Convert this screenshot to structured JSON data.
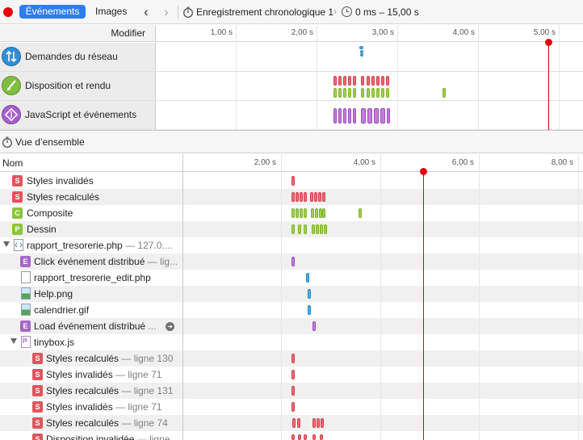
{
  "toolbar": {
    "tabs": [
      {
        "label": "Événements",
        "active": true
      },
      {
        "label": "Images",
        "active": false
      }
    ],
    "recording_name": "Enregistrement chronologique 1",
    "time_range": "0 ms – 15,00 s"
  },
  "overview": {
    "header_label": "Modifier",
    "ticks": [
      "1,00 s",
      "2,00 s",
      "3,00 s",
      "4,00 s",
      "5,00 s"
    ],
    "rows": [
      {
        "label": "Demandes du réseau",
        "icon": "network-icon",
        "color": "#2f8ed6"
      },
      {
        "label": "Disposition et rendu",
        "icon": "paintbrush-icon",
        "color": "#7fbf3f"
      },
      {
        "label": "JavaScript et événements",
        "icon": "javascript-icon",
        "color": "#a85fd0"
      }
    ]
  },
  "vue_ensemble": {
    "label": "Vue d’ensemble"
  },
  "list": {
    "header_label": "Nom",
    "ticks": [
      "2,00 s",
      "4,00 s",
      "6,00 s",
      "8,00 s"
    ],
    "rows": [
      {
        "badge": "S",
        "name": "Styles invalidés",
        "sub": ""
      },
      {
        "badge": "S",
        "name": "Styles recalculés",
        "sub": ""
      },
      {
        "badge": "C",
        "name": "Composite",
        "sub": ""
      },
      {
        "badge": "P",
        "name": "Dessin",
        "sub": ""
      },
      {
        "badge": "doc",
        "name": "rapport_tresorerie.php",
        "sub": " — 127.0...."
      },
      {
        "badge": "E",
        "name": "Click événement distribué",
        "sub": " — lig..."
      },
      {
        "badge": "file",
        "name": "rapport_tresorerie_edit.php",
        "sub": ""
      },
      {
        "badge": "img",
        "name": "Help.png",
        "sub": ""
      },
      {
        "badge": "img",
        "name": "calendrier.gif",
        "sub": ""
      },
      {
        "badge": "E",
        "name": "Load événement distribué",
        "sub": " ..."
      },
      {
        "badge": "js",
        "name": "tinybox.js",
        "sub": ""
      },
      {
        "badge": "S",
        "name": "Styles recalculés",
        "sub": " — ligne 130"
      },
      {
        "badge": "S",
        "name": "Styles invalidés",
        "sub": " — ligne 71"
      },
      {
        "badge": "S",
        "name": "Styles recalculés",
        "sub": " — ligne 131"
      },
      {
        "badge": "S",
        "name": "Styles invalidés",
        "sub": " — ligne 71"
      },
      {
        "badge": "S",
        "name": "Styles recalculés",
        "sub": " — ligne 74"
      },
      {
        "badge": "S",
        "name": "Disposition invalidée",
        "sub": " — ligne ..."
      }
    ]
  },
  "colors": {
    "styles": "#ef6a76",
    "composite": "#a2cf54",
    "script": "#c07ed7",
    "network": "#4aaee6",
    "playhead": "#e4000b",
    "active_tab": "#2e7cf6"
  }
}
